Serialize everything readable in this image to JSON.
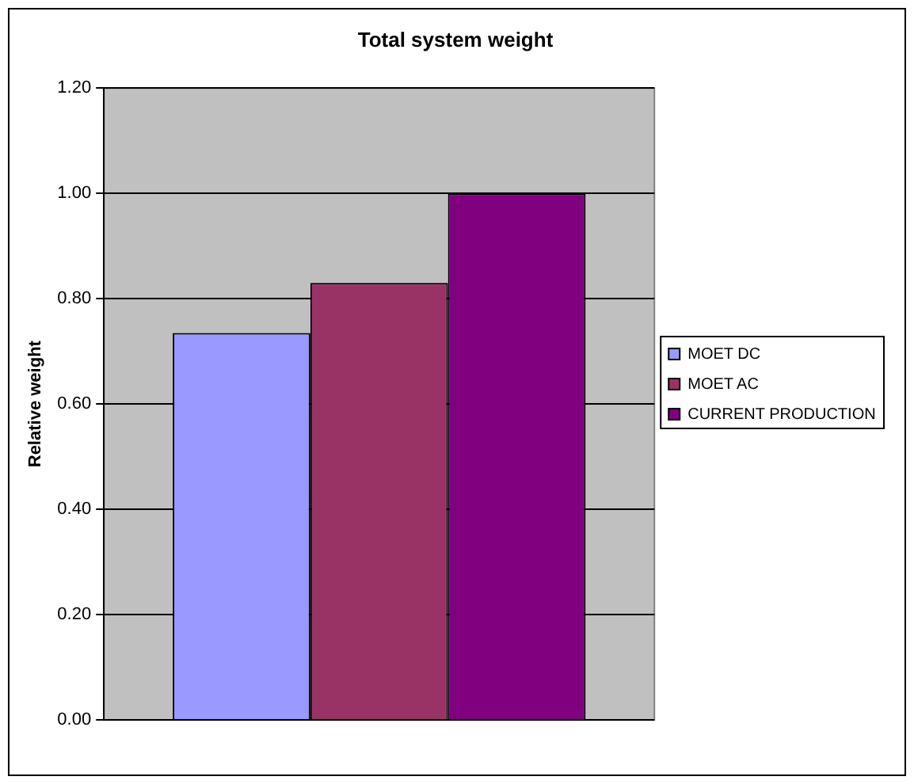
{
  "chart_data": {
    "type": "bar",
    "title": "Total system weight",
    "ylabel": "Relative weight",
    "categories": [
      null
    ],
    "series": [
      {
        "name": "MOET DC",
        "color": "#9999ff",
        "values": [
          0.735
        ]
      },
      {
        "name": "MOET AC",
        "color": "#993366",
        "values": [
          0.83
        ]
      },
      {
        "name": "CURRENT PRODUCTION",
        "color": "#800080",
        "values": [
          1.0
        ]
      }
    ],
    "ylim": [
      0,
      1.2
    ],
    "yticks": [
      {
        "value": 0,
        "label": "0.00"
      },
      {
        "value": 0.2,
        "label": "0.20"
      },
      {
        "value": 0.4,
        "label": "0.40"
      },
      {
        "value": 0.6,
        "label": "0.60"
      },
      {
        "value": 0.8,
        "label": "0.80"
      },
      {
        "value": 1.0,
        "label": "1.00"
      },
      {
        "value": 1.2,
        "label": "1.20"
      }
    ],
    "grid": "y",
    "legend": "right"
  }
}
